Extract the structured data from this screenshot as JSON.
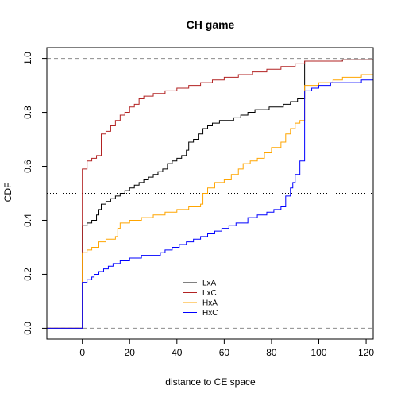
{
  "chart_data": {
    "type": "line",
    "step": true,
    "title": "CH game",
    "xlabel": "distance to CE space",
    "ylabel": "CDF",
    "xlim": [
      -15,
      123
    ],
    "ylim": [
      -0.04,
      1.04
    ],
    "x_ticks": [
      0,
      20,
      40,
      60,
      80,
      100,
      120
    ],
    "x_tick_labels": [
      "0",
      "20",
      "40",
      "60",
      "80",
      "100",
      "120"
    ],
    "y_ticks": [
      0.0,
      0.2,
      0.4,
      0.6,
      0.8,
      1.0
    ],
    "y_tick_labels": [
      "0.0",
      "0.2",
      "0.4",
      "0.6",
      "0.8",
      "1.0"
    ],
    "reference_lines": [
      {
        "axis": "y",
        "value": 0.0,
        "style": "dashed",
        "color": "#8c8c8c"
      },
      {
        "axis": "y",
        "value": 1.0,
        "style": "dashed",
        "color": "#8c8c8c"
      },
      {
        "axis": "y",
        "value": 0.5,
        "style": "dotted",
        "color": "#000000"
      }
    ],
    "legend_position": "bottom-center",
    "series": [
      {
        "name": "LxA",
        "color": "#000000",
        "points": [
          [
            -15,
            0
          ],
          [
            0,
            0
          ],
          [
            0,
            0.38
          ],
          [
            2,
            0.39
          ],
          [
            4,
            0.4
          ],
          [
            6,
            0.42
          ],
          [
            7,
            0.44
          ],
          [
            8,
            0.46
          ],
          [
            10,
            0.47
          ],
          [
            12,
            0.48
          ],
          [
            14,
            0.49
          ],
          [
            16,
            0.5
          ],
          [
            18,
            0.51
          ],
          [
            20,
            0.52
          ],
          [
            22,
            0.53
          ],
          [
            24,
            0.54
          ],
          [
            26,
            0.55
          ],
          [
            28,
            0.56
          ],
          [
            30,
            0.57
          ],
          [
            32,
            0.58
          ],
          [
            34,
            0.59
          ],
          [
            36,
            0.61
          ],
          [
            38,
            0.62
          ],
          [
            40,
            0.63
          ],
          [
            42,
            0.64
          ],
          [
            44,
            0.66
          ],
          [
            45,
            0.69
          ],
          [
            47,
            0.7
          ],
          [
            49,
            0.72
          ],
          [
            51,
            0.74
          ],
          [
            53,
            0.75
          ],
          [
            55,
            0.76
          ],
          [
            58,
            0.77
          ],
          [
            61,
            0.77
          ],
          [
            64,
            0.78
          ],
          [
            67,
            0.79
          ],
          [
            70,
            0.8
          ],
          [
            73,
            0.81
          ],
          [
            76,
            0.81
          ],
          [
            79,
            0.82
          ],
          [
            82,
            0.82
          ],
          [
            85,
            0.83
          ],
          [
            88,
            0.84
          ],
          [
            91,
            0.85
          ],
          [
            94,
            0.86
          ],
          [
            94,
            0.99
          ],
          [
            100,
            0.99
          ],
          [
            110,
            0.995
          ],
          [
            123,
            0.995
          ]
        ]
      },
      {
        "name": "LxC",
        "color": "#b22222",
        "points": [
          [
            -15,
            0
          ],
          [
            0,
            0
          ],
          [
            0,
            0.59
          ],
          [
            2,
            0.62
          ],
          [
            4,
            0.63
          ],
          [
            6,
            0.64
          ],
          [
            8,
            0.72
          ],
          [
            10,
            0.73
          ],
          [
            12,
            0.75
          ],
          [
            14,
            0.77
          ],
          [
            16,
            0.79
          ],
          [
            18,
            0.8
          ],
          [
            20,
            0.82
          ],
          [
            22,
            0.83
          ],
          [
            24,
            0.85
          ],
          [
            26,
            0.86
          ],
          [
            30,
            0.87
          ],
          [
            35,
            0.88
          ],
          [
            40,
            0.89
          ],
          [
            45,
            0.9
          ],
          [
            50,
            0.91
          ],
          [
            55,
            0.92
          ],
          [
            60,
            0.93
          ],
          [
            66,
            0.94
          ],
          [
            72,
            0.95
          ],
          [
            78,
            0.96
          ],
          [
            84,
            0.97
          ],
          [
            90,
            0.98
          ],
          [
            94,
            0.99
          ],
          [
            100,
            0.99
          ],
          [
            110,
            0.995
          ],
          [
            123,
            0.995
          ]
        ]
      },
      {
        "name": "HxA",
        "color": "#ffa500",
        "points": [
          [
            -15,
            0
          ],
          [
            0,
            0
          ],
          [
            0,
            0.28
          ],
          [
            2,
            0.29
          ],
          [
            4,
            0.3
          ],
          [
            7,
            0.32
          ],
          [
            10,
            0.33
          ],
          [
            14,
            0.34
          ],
          [
            15,
            0.37
          ],
          [
            16,
            0.39
          ],
          [
            20,
            0.4
          ],
          [
            25,
            0.41
          ],
          [
            30,
            0.42
          ],
          [
            35,
            0.43
          ],
          [
            40,
            0.44
          ],
          [
            45,
            0.45
          ],
          [
            50,
            0.46
          ],
          [
            51,
            0.5
          ],
          [
            53,
            0.52
          ],
          [
            56,
            0.54
          ],
          [
            60,
            0.55
          ],
          [
            63,
            0.57
          ],
          [
            66,
            0.59
          ],
          [
            68,
            0.61
          ],
          [
            71,
            0.62
          ],
          [
            74,
            0.63
          ],
          [
            77,
            0.65
          ],
          [
            80,
            0.67
          ],
          [
            84,
            0.69
          ],
          [
            86,
            0.72
          ],
          [
            88,
            0.74
          ],
          [
            90,
            0.76
          ],
          [
            92,
            0.77
          ],
          [
            94,
            0.9
          ],
          [
            97,
            0.9
          ],
          [
            100,
            0.91
          ],
          [
            106,
            0.92
          ],
          [
            110,
            0.93
          ],
          [
            118,
            0.94
          ],
          [
            123,
            0.94
          ]
        ]
      },
      {
        "name": "HxC",
        "color": "#0000ff",
        "points": [
          [
            -15,
            0
          ],
          [
            0,
            0
          ],
          [
            0,
            0.17
          ],
          [
            2,
            0.18
          ],
          [
            4,
            0.19
          ],
          [
            5,
            0.2
          ],
          [
            7,
            0.21
          ],
          [
            9,
            0.22
          ],
          [
            11,
            0.23
          ],
          [
            13,
            0.24
          ],
          [
            16,
            0.25
          ],
          [
            20,
            0.26
          ],
          [
            25,
            0.27
          ],
          [
            30,
            0.27
          ],
          [
            33,
            0.28
          ],
          [
            35,
            0.29
          ],
          [
            38,
            0.3
          ],
          [
            41,
            0.31
          ],
          [
            44,
            0.32
          ],
          [
            47,
            0.33
          ],
          [
            50,
            0.34
          ],
          [
            53,
            0.35
          ],
          [
            56,
            0.36
          ],
          [
            59,
            0.37
          ],
          [
            62,
            0.38
          ],
          [
            65,
            0.39
          ],
          [
            70,
            0.41
          ],
          [
            74,
            0.42
          ],
          [
            78,
            0.43
          ],
          [
            81,
            0.44
          ],
          [
            84,
            0.45
          ],
          [
            86,
            0.49
          ],
          [
            88,
            0.52
          ],
          [
            89,
            0.54
          ],
          [
            90,
            0.57
          ],
          [
            92,
            0.62
          ],
          [
            94,
            0.88
          ],
          [
            97,
            0.89
          ],
          [
            100,
            0.9
          ],
          [
            105,
            0.91
          ],
          [
            110,
            0.91
          ],
          [
            118,
            0.92
          ],
          [
            123,
            0.92
          ]
        ]
      }
    ]
  }
}
